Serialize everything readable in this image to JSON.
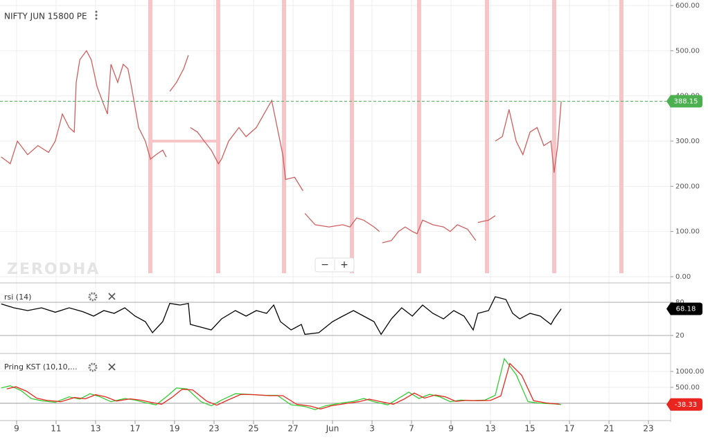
{
  "chart_data": [
    {
      "type": "line",
      "title": "NIFTY JUN 15800 PE",
      "watermark": "ZERODHA",
      "zoom_controls": [
        "−",
        "+"
      ],
      "xlim": [
        -0.42,
        16.56
      ],
      "ylim": [
        0,
        600
      ],
      "yticks": [
        {
          "value": 0,
          "label": "0.00"
        },
        {
          "value": 100,
          "label": "100.00"
        },
        {
          "value": 200,
          "label": "200.00"
        },
        {
          "value": 300,
          "label": "300.00"
        },
        {
          "value": 400,
          "label": "400.00"
        },
        {
          "value": 500,
          "label": "500.00"
        },
        {
          "value": 600,
          "label": "600.00"
        }
      ],
      "last_price": {
        "value": 388.15,
        "label": "388.15"
      },
      "last_label_color": "#4caf50",
      "series": [
        {
          "color": "#cf5f5f",
          "x": [
            -0.39,
            -0.16,
            0.02,
            0.28,
            0.54,
            0.81,
            0.98,
            1.16,
            1.33,
            1.46,
            1.51,
            1.6,
            1.77,
            1.89,
            2.04,
            2.21,
            2.3,
            2.39,
            2.56,
            2.7,
            2.82,
            2.91,
            3.09,
            3.26,
            3.39,
            3.53,
            3.7,
            3.79,
            null,
            3.88,
            4.05,
            4.23,
            4.35,
            null,
            4.4,
            4.58,
            4.75,
            4.93,
            5.11,
            5.19,
            5.37,
            5.63,
            5.81,
            6.07,
            6.33,
            6.46,
            6.6,
            6.74,
            6.81,
            7.04,
            7.25,
            null,
            7.3,
            7.56,
            7.91,
            8.26,
            8.44,
            8.61,
            8.79,
            9.05,
            9.19,
            null,
            9.26,
            9.49,
            9.67,
            9.84,
            10.02,
            10.14,
            10.28,
            10.54,
            10.81,
            10.98,
            11.16,
            11.42,
            11.63,
            null,
            11.68,
            11.95,
            12.12,
            null,
            12.12,
            12.3,
            12.47,
            12.65,
            12.82,
            13,
            13.18,
            13.35,
            13.53,
            13.61,
            13.7,
            13.79
          ],
          "values": [
            265,
            250,
            300,
            270,
            290,
            275,
            300,
            360,
            330,
            320,
            430,
            480,
            500,
            480,
            420,
            380,
            360,
            470,
            430,
            470,
            460,
            420,
            330,
            300,
            260,
            270,
            280,
            265,
            null,
            410,
            430,
            460,
            490,
            null,
            330,
            320,
            300,
            280,
            250,
            260,
            300,
            330,
            310,
            330,
            370,
            390,
            330,
            270,
            215,
            220,
            190,
            null,
            140,
            115,
            110,
            115,
            110,
            130,
            125,
            110,
            100,
            null,
            75,
            80,
            100,
            110,
            100,
            95,
            125,
            115,
            110,
            100,
            115,
            105,
            80,
            null,
            120,
            125,
            135,
            null,
            300,
            310,
            370,
            300,
            270,
            320,
            330,
            290,
            300,
            230,
            290,
            388.15
          ]
        }
      ]
    },
    {
      "type": "line",
      "title": "rsi (14)",
      "xlim": [
        -0.42,
        16.56
      ],
      "ylim": [
        -11.25,
        113.75
      ],
      "yticks": [
        20,
        80
      ],
      "last_label_color": "#000000",
      "series": [
        {
          "color": "#000000",
          "x": [
            -0.39,
            -0.07,
            0.28,
            0.63,
            0.98,
            1.33,
            1.68,
            1.95,
            2.21,
            2.47,
            2.74,
            3,
            3.26,
            3.44,
            3.7,
            3.88,
            4.14,
            4.35,
            4.4,
            4.67,
            4.93,
            5.19,
            5.54,
            5.81,
            6.07,
            6.33,
            6.51,
            6.68,
            6.95,
            7.21,
            7.3,
            7.65,
            8,
            8.26,
            8.53,
            8.79,
            9.05,
            9.23,
            9.49,
            9.75,
            10.02,
            10.28,
            10.54,
            10.81,
            11.07,
            11.33,
            11.56,
            11.68,
            11.95,
            12.12,
            12.39,
            12.56,
            12.74,
            13,
            13.26,
            13.53,
            13.61,
            13.79
          ],
          "values": [
            77,
            70,
            65,
            70,
            62,
            70,
            63,
            55,
            65,
            60,
            70,
            55,
            45,
            25,
            45,
            78,
            75,
            78,
            40,
            35,
            30,
            50,
            65,
            55,
            65,
            60,
            75,
            45,
            30,
            40,
            22,
            25,
            45,
            55,
            65,
            55,
            45,
            22,
            50,
            70,
            55,
            75,
            60,
            50,
            65,
            55,
            30,
            60,
            65,
            90,
            85,
            60,
            50,
            60,
            55,
            40,
            50,
            68.18
          ]
        }
      ]
    },
    {
      "type": "line",
      "title": "Pring KST (10,10,...",
      "xlim": [
        -0.42,
        16.56
      ],
      "ylim": [
        -478,
        1543
      ],
      "yticks": [
        {
          "value": 500,
          "label": "500.00"
        },
        {
          "value": 1000,
          "label": "1000.00"
        }
      ],
      "last_label_color": "#e8261f",
      "xticks": [
        {
          "value": 0,
          "label": "9"
        },
        {
          "value": 1,
          "label": "11"
        },
        {
          "value": 2,
          "label": "13"
        },
        {
          "value": 3,
          "label": "17"
        },
        {
          "value": 4,
          "label": "19"
        },
        {
          "value": 5,
          "label": "23"
        },
        {
          "value": 6,
          "label": "25"
        },
        {
          "value": 7,
          "label": "27"
        },
        {
          "value": 8,
          "label": "Jun"
        },
        {
          "value": 9,
          "label": "3"
        },
        {
          "value": 10,
          "label": "7"
        },
        {
          "value": 11,
          "label": "9"
        },
        {
          "value": 12,
          "label": "13"
        },
        {
          "value": 13,
          "label": "15"
        },
        {
          "value": 14,
          "label": "17"
        },
        {
          "value": 15,
          "label": "21"
        },
        {
          "value": 16,
          "label": "23"
        }
      ],
      "series": [
        {
          "color": "#33cc33",
          "x": [
            -0.39,
            -0.16,
            0.11,
            0.37,
            0.63,
            0.98,
            1.33,
            1.6,
            1.86,
            2.12,
            2.39,
            2.74,
            3,
            3.26,
            3.53,
            3.79,
            4.05,
            4.32,
            4.67,
            4.93,
            5.19,
            5.54,
            5.89,
            6.25,
            6.6,
            6.95,
            7.3,
            7.56,
            7.82,
            8.18,
            8.53,
            8.79,
            9.05,
            9.4,
            9.67,
            9.93,
            10.19,
            10.46,
            10.72,
            10.98,
            11.25,
            11.51,
            11.86,
            12.12,
            12.35,
            12.65,
            12.95,
            13.26,
            13.61,
            13.79
          ],
          "values": [
            480,
            550,
            400,
            150,
            80,
            30,
            200,
            130,
            300,
            200,
            50,
            150,
            100,
            20,
            -50,
            200,
            480,
            450,
            50,
            -80,
            100,
            300,
            280,
            250,
            250,
            -50,
            -100,
            -200,
            -80,
            0,
            60,
            150,
            50,
            -50,
            150,
            350,
            150,
            280,
            200,
            50,
            100,
            80,
            100,
            250,
            1400,
            900,
            50,
            0,
            -20,
            -38.33
          ]
        },
        {
          "color": "#e8261f",
          "x": [
            -0.25,
            -0.02,
            0.25,
            0.51,
            0.77,
            1.12,
            1.47,
            1.74,
            2,
            2.26,
            2.53,
            2.88,
            3.14,
            3.4,
            3.67,
            3.93,
            4.19,
            4.46,
            4.81,
            5.07,
            5.33,
            5.68,
            6.03,
            6.39,
            6.74,
            7.09,
            7.44,
            7.7,
            7.96,
            8.32,
            8.67,
            8.93,
            9.19,
            9.54,
            9.81,
            10.07,
            10.33,
            10.6,
            10.86,
            11.12,
            11.39,
            11.65,
            12,
            12.26,
            12.49,
            12.79,
            13.09,
            13.4,
            13.75
          ],
          "values": [
            450,
            520,
            380,
            160,
            90,
            50,
            180,
            140,
            270,
            200,
            70,
            140,
            100,
            30,
            -30,
            180,
            440,
            420,
            70,
            -60,
            90,
            280,
            270,
            240,
            240,
            -30,
            -90,
            -180,
            -80,
            -10,
            50,
            130,
            60,
            -30,
            130,
            320,
            160,
            260,
            200,
            60,
            90,
            80,
            90,
            230,
            1250,
            880,
            80,
            10,
            -30
          ]
        }
      ]
    }
  ]
}
